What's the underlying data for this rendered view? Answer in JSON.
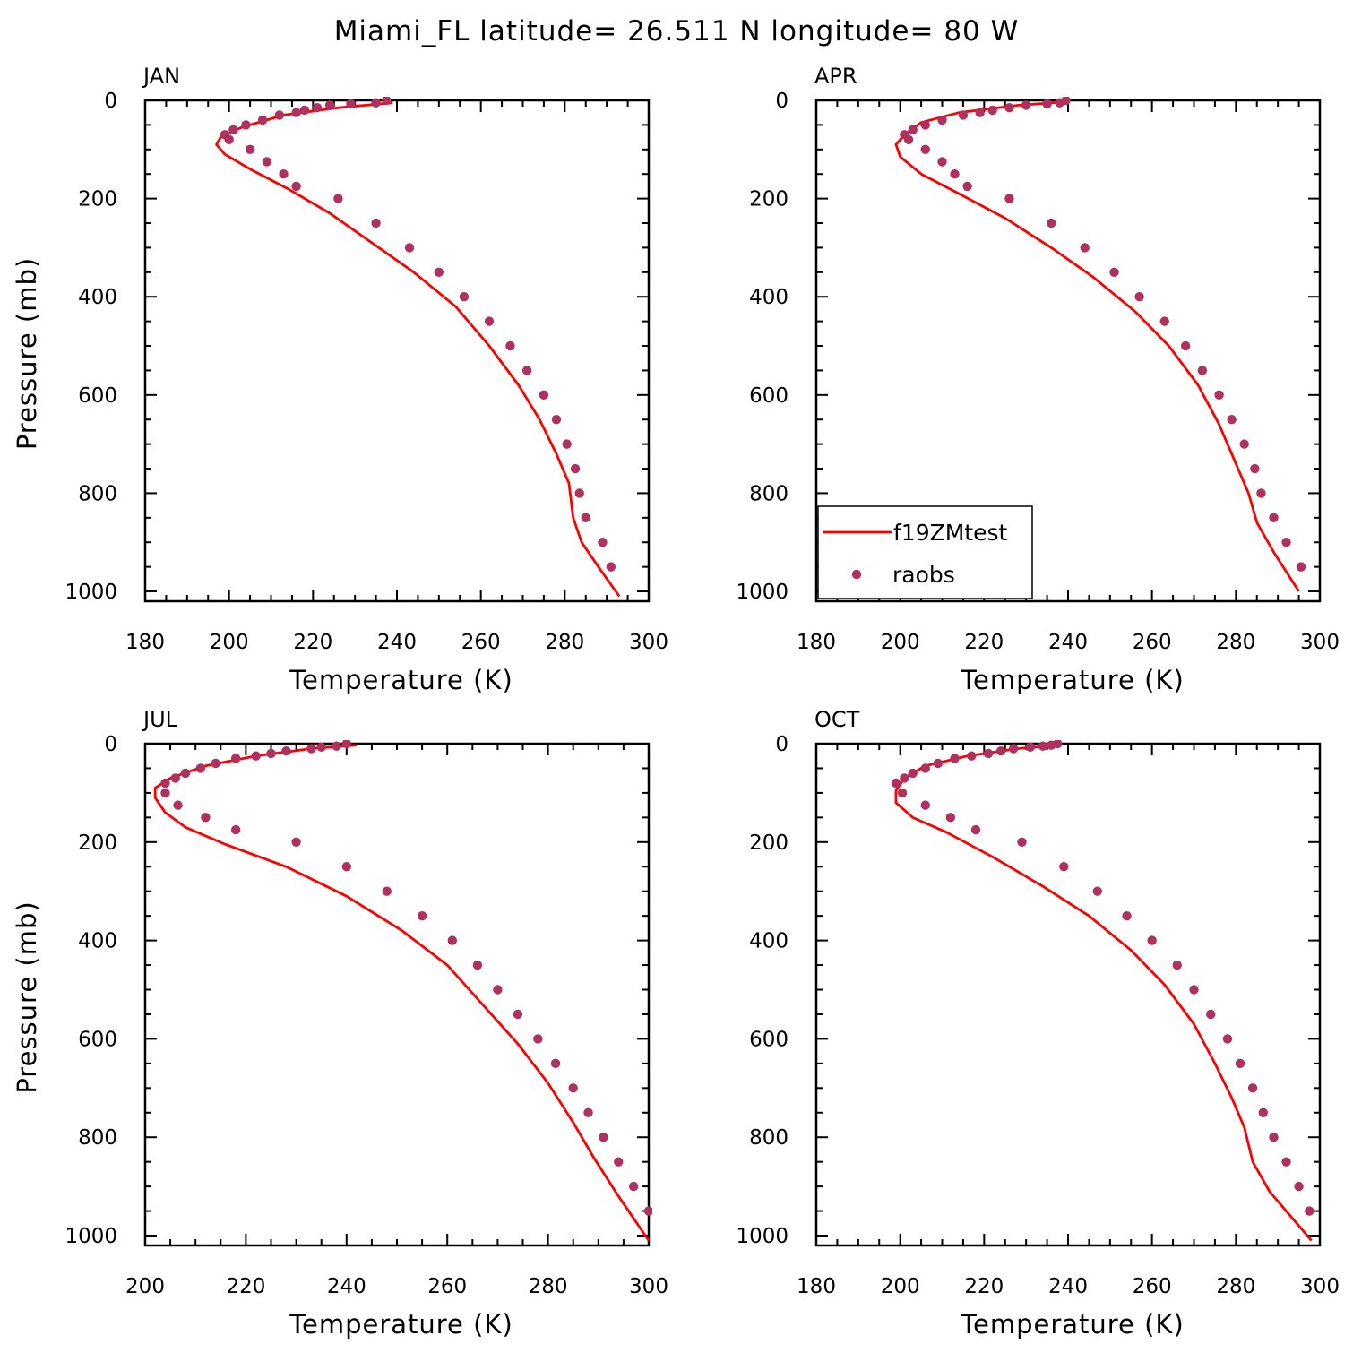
{
  "figure": {
    "title": "Miami_FL  latitude= 26.511 N longitude= 80 W"
  },
  "colors": {
    "model": "#ff0000",
    "obs": "#b03060",
    "frame": "#000000"
  },
  "legend": {
    "placement": "lower-left of APR panel",
    "items": [
      {
        "label": "f19ZMtest",
        "marker": "line",
        "color": "#ff0000"
      },
      {
        "label": "raobs",
        "marker": "dot",
        "color": "#b03060"
      }
    ]
  },
  "chart_data": [
    {
      "type": "line",
      "panel_label": "JAN",
      "xlabel": "Temperature (K)",
      "ylabel": "Pressure (mb)",
      "xlim": [
        180,
        300
      ],
      "ylim": [
        1020,
        0
      ],
      "y_reversed": true,
      "x_ticks": [
        180,
        200,
        220,
        240,
        260,
        280,
        300
      ],
      "y_ticks": [
        0,
        200,
        400,
        600,
        800,
        1000
      ],
      "series": [
        {
          "name": "f19ZMtest",
          "style": "line",
          "x": [
            239,
            226,
            213,
            203,
            198,
            197,
            199,
            205,
            214,
            224,
            234,
            244,
            254,
            262,
            269,
            274,
            278,
            281,
            282,
            284,
            288,
            293
          ],
          "y": [
            5,
            15,
            30,
            55,
            75,
            90,
            110,
            140,
            180,
            230,
            290,
            350,
            420,
            500,
            580,
            650,
            720,
            780,
            850,
            900,
            950,
            1010
          ]
        },
        {
          "name": "raobs",
          "style": "dot",
          "x": [
            237.5,
            235,
            229,
            224,
            221,
            218,
            216,
            212,
            208,
            204,
            201,
            199,
            200,
            205,
            209,
            213,
            216,
            226,
            235,
            243,
            250,
            256,
            262,
            267,
            271,
            275,
            278,
            280.5,
            282.5,
            283.5,
            285,
            289,
            291
          ],
          "y": [
            0,
            5,
            7,
            10,
            15,
            20,
            25,
            30,
            40,
            50,
            60,
            70,
            80,
            100,
            125,
            150,
            175,
            200,
            250,
            300,
            350,
            400,
            450,
            500,
            550,
            600,
            650,
            700,
            750,
            800,
            850,
            900,
            950
          ]
        }
      ]
    },
    {
      "type": "line",
      "panel_label": "APR",
      "xlabel": "Temperature (K)",
      "ylabel": "",
      "xlim": [
        180,
        300
      ],
      "ylim": [
        1020,
        0
      ],
      "y_reversed": true,
      "x_ticks": [
        180,
        200,
        220,
        240,
        260,
        280,
        300
      ],
      "y_ticks": [
        0,
        200,
        400,
        600,
        800,
        1000
      ],
      "series": [
        {
          "name": "f19ZMtest",
          "style": "line",
          "x": [
            240,
            228,
            214,
            205,
            201,
            199,
            200,
            205,
            214,
            225,
            236,
            246,
            256,
            264,
            271,
            276,
            280,
            283,
            285,
            289,
            295
          ],
          "y": [
            3,
            10,
            25,
            45,
            70,
            90,
            115,
            150,
            190,
            240,
            300,
            360,
            430,
            500,
            580,
            660,
            740,
            800,
            860,
            920,
            1000
          ]
        },
        {
          "name": "raobs",
          "style": "dot",
          "x": [
            239.5,
            238,
            235,
            230,
            226,
            222,
            219,
            215,
            210,
            206,
            203,
            201,
            202,
            206,
            210,
            213,
            216,
            226,
            236,
            244,
            251,
            257,
            263,
            268,
            272,
            276,
            279,
            282,
            284.5,
            286,
            289,
            292,
            295.5
          ],
          "y": [
            0,
            5,
            7,
            10,
            15,
            20,
            25,
            30,
            40,
            50,
            60,
            70,
            80,
            100,
            125,
            150,
            175,
            200,
            250,
            300,
            350,
            400,
            450,
            500,
            550,
            600,
            650,
            700,
            750,
            800,
            850,
            900,
            950
          ]
        }
      ]
    },
    {
      "type": "line",
      "panel_label": "JUL",
      "xlabel": "Temperature (K)",
      "ylabel": "Pressure (mb)",
      "xlim": [
        200,
        300
      ],
      "ylim": [
        1020,
        0
      ],
      "y_reversed": true,
      "x_ticks": [
        200,
        220,
        240,
        260,
        280,
        300
      ],
      "y_ticks": [
        0,
        200,
        400,
        600,
        800,
        1000
      ],
      "series": [
        {
          "name": "f19ZMtest",
          "style": "line",
          "x": [
            242,
            233,
            222,
            212,
            205,
            202,
            202,
            204,
            208,
            216,
            228,
            240,
            251,
            260,
            267,
            274,
            280,
            285,
            289,
            294,
            300
          ],
          "y": [
            3,
            10,
            25,
            45,
            70,
            90,
            110,
            140,
            170,
            205,
            250,
            310,
            380,
            450,
            530,
            610,
            690,
            770,
            840,
            920,
            1010
          ]
        },
        {
          "name": "raobs",
          "style": "dot",
          "x": [
            240,
            238,
            235,
            233,
            228,
            225,
            222,
            218,
            214,
            211,
            208,
            206,
            204,
            204,
            206.5,
            212,
            218,
            230,
            240,
            248,
            255,
            261,
            266,
            270,
            274,
            278,
            281.5,
            285,
            288,
            291,
            294,
            297,
            300
          ],
          "y": [
            0,
            5,
            7,
            10,
            15,
            20,
            25,
            30,
            40,
            50,
            60,
            70,
            80,
            100,
            125,
            150,
            175,
            200,
            250,
            300,
            350,
            400,
            450,
            500,
            550,
            600,
            650,
            700,
            750,
            800,
            850,
            900,
            950
          ]
        }
      ]
    },
    {
      "type": "line",
      "panel_label": "OCT",
      "xlabel": "Temperature (K)",
      "ylabel": "",
      "xlim": [
        180,
        300
      ],
      "ylim": [
        1020,
        0
      ],
      "y_reversed": true,
      "x_ticks": [
        180,
        200,
        220,
        240,
        260,
        280,
        300
      ],
      "y_ticks": [
        0,
        200,
        400,
        600,
        800,
        1000
      ],
      "series": [
        {
          "name": "f19ZMtest",
          "style": "line",
          "x": [
            238,
            228,
            216,
            206,
            201,
            199,
            199,
            203,
            211,
            222,
            234,
            245,
            255,
            263,
            270,
            275,
            279,
            282,
            284,
            288,
            293,
            298
          ],
          "y": [
            3,
            10,
            25,
            45,
            70,
            95,
            120,
            150,
            180,
            230,
            290,
            350,
            420,
            490,
            570,
            650,
            720,
            780,
            850,
            910,
            960,
            1010
          ]
        },
        {
          "name": "raobs",
          "style": "dot",
          "x": [
            237.5,
            236,
            234,
            231,
            227,
            224,
            221,
            217,
            213,
            209,
            206,
            203,
            201,
            199,
            200.5,
            206,
            212,
            218,
            229,
            239,
            247,
            254,
            260,
            266,
            270,
            274,
            278,
            281,
            284,
            286.5,
            289,
            292,
            295,
            297.5
          ],
          "y": [
            0,
            3,
            5,
            7,
            10,
            15,
            20,
            25,
            30,
            40,
            50,
            60,
            70,
            80,
            100,
            125,
            150,
            175,
            200,
            250,
            300,
            350,
            400,
            450,
            500,
            550,
            600,
            650,
            700,
            750,
            800,
            850,
            900,
            950
          ]
        }
      ]
    }
  ]
}
